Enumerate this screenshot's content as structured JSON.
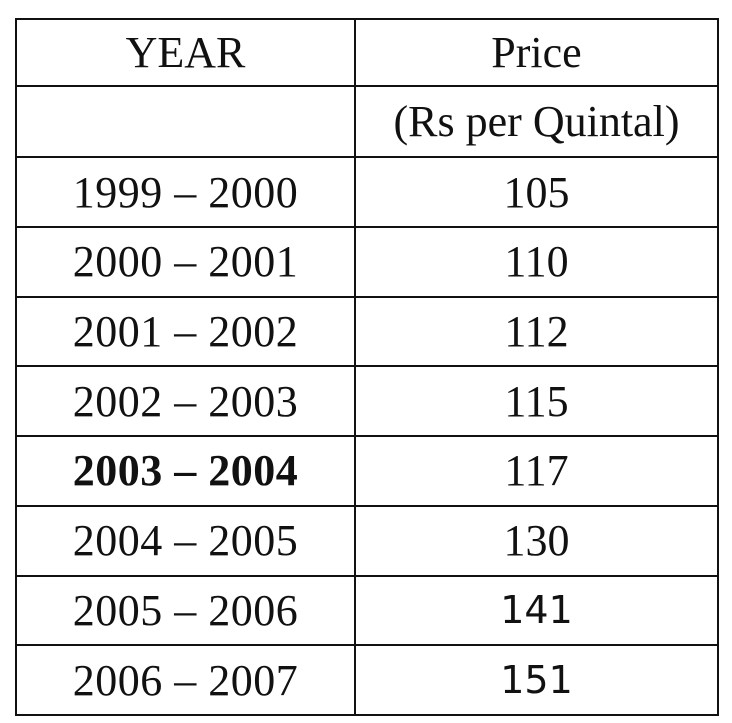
{
  "table": {
    "header": {
      "year_label": "YEAR",
      "price_label": "Price",
      "price_unit": "(Rs per Quintal)"
    },
    "rows": [
      {
        "year": "1999 – 2000",
        "price": "105",
        "bold": false
      },
      {
        "year": "2000 – 2001",
        "price": "110",
        "bold": false
      },
      {
        "year": "2001 – 2002",
        "price": "112",
        "bold": false
      },
      {
        "year": "2002 – 2003",
        "price": "115",
        "bold": false
      },
      {
        "year": "2003 – 2004",
        "price": "117",
        "bold": true
      },
      {
        "year": "2004 – 2005",
        "price": "130",
        "bold": false
      },
      {
        "year": "2005 – 2006",
        "price": "141",
        "bold": false
      },
      {
        "year": "2006 – 2007",
        "price": "151",
        "bold": false
      }
    ]
  }
}
